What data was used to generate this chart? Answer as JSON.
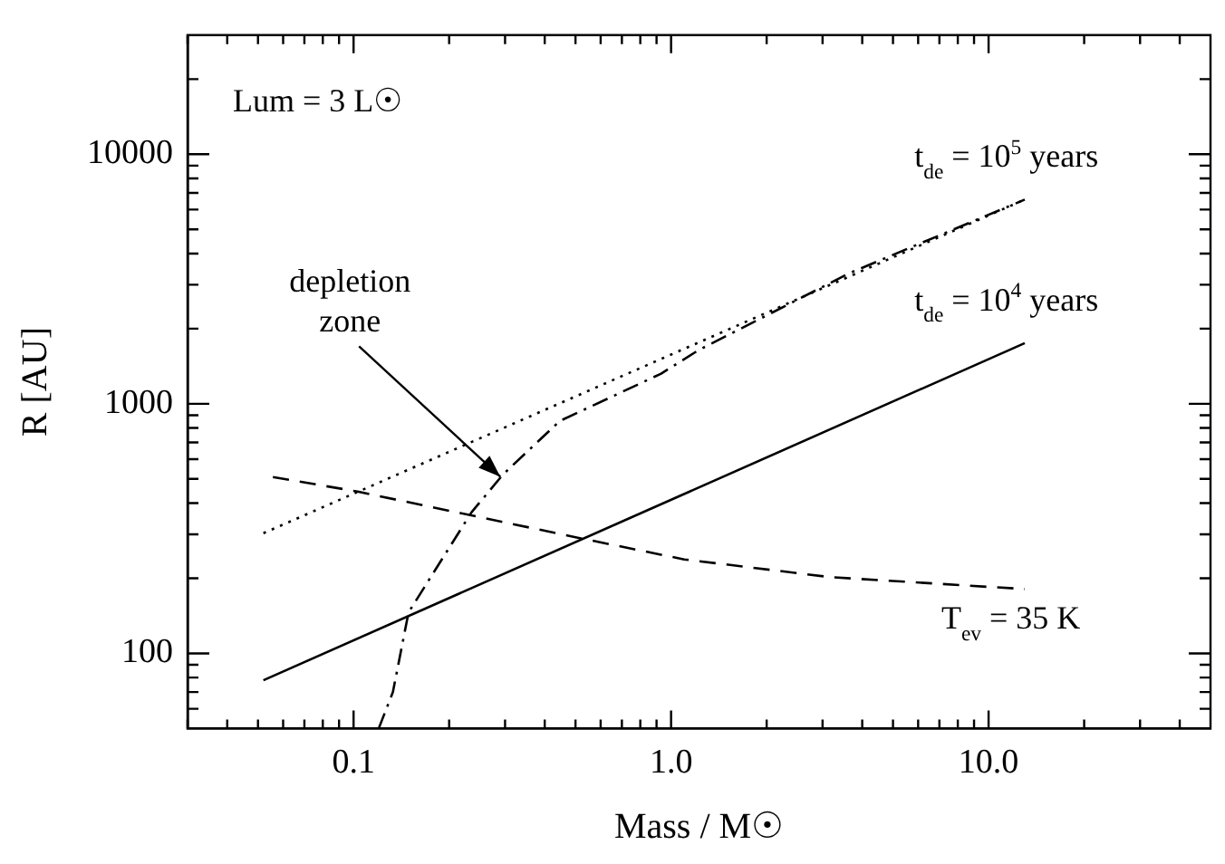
{
  "chart_data": {
    "type": "line",
    "xlabel": "Mass / M☉",
    "ylabel": "R [AU]",
    "log": "xy",
    "grid": false,
    "legend": false,
    "marker": "none",
    "xlim": [
      0.03,
      50
    ],
    "ylim": [
      50,
      30000
    ],
    "xticks": [
      {
        "value": 0.03,
        "label": null
      },
      {
        "value": 0.04,
        "label": null
      },
      {
        "value": 0.05,
        "label": null
      },
      {
        "value": 0.06,
        "label": null
      },
      {
        "value": 0.07,
        "label": null
      },
      {
        "value": 0.08,
        "label": null
      },
      {
        "value": 0.09,
        "label": null
      },
      {
        "value": 0.1,
        "label": "0.1"
      },
      {
        "value": 0.2,
        "label": null
      },
      {
        "value": 0.3,
        "label": null
      },
      {
        "value": 0.4,
        "label": null
      },
      {
        "value": 0.5,
        "label": null
      },
      {
        "value": 0.6,
        "label": null
      },
      {
        "value": 0.7,
        "label": null
      },
      {
        "value": 0.8,
        "label": null
      },
      {
        "value": 0.9,
        "label": null
      },
      {
        "value": 1,
        "label": "1.0"
      },
      {
        "value": 2,
        "label": null
      },
      {
        "value": 3,
        "label": null
      },
      {
        "value": 4,
        "label": null
      },
      {
        "value": 5,
        "label": null
      },
      {
        "value": 6,
        "label": null
      },
      {
        "value": 7,
        "label": null
      },
      {
        "value": 8,
        "label": null
      },
      {
        "value": 9,
        "label": null
      },
      {
        "value": 10,
        "label": "10.0"
      },
      {
        "value": 20,
        "label": null
      },
      {
        "value": 30,
        "label": null
      },
      {
        "value": 40,
        "label": null
      }
    ],
    "yticks": [
      {
        "value": 60,
        "label": null
      },
      {
        "value": 70,
        "label": null
      },
      {
        "value": 80,
        "label": null
      },
      {
        "value": 90,
        "label": null
      },
      100,
      {
        "value": 200,
        "label": null
      },
      {
        "value": 300,
        "label": null
      },
      {
        "value": 400,
        "label": null
      },
      {
        "value": 500,
        "label": null
      },
      {
        "value": 600,
        "label": null
      },
      {
        "value": 700,
        "label": null
      },
      {
        "value": 800,
        "label": null
      },
      {
        "value": 900,
        "label": null
      },
      1000,
      {
        "value": 2000,
        "label": null
      },
      {
        "value": 3000,
        "label": null
      },
      {
        "value": 4000,
        "label": null
      },
      {
        "value": 5000,
        "label": null
      },
      {
        "value": 6000,
        "label": null
      },
      {
        "value": 7000,
        "label": null
      },
      {
        "value": 8000,
        "label": null
      },
      {
        "value": 9000,
        "label": null
      },
      10000,
      {
        "value": 20000,
        "label": null
      }
    ],
    "series": [
      {
        "name": "t$_{de}$ = 10$^{5}$ years",
        "color": "#000000",
        "line_style": "dotted",
        "x": [
          0.052,
          13
        ],
        "values": [
          303,
          6580
        ]
      },
      {
        "name": "t$_{de}$ = 10$^{4}$ years",
        "color": "#000000",
        "line_style": "solid",
        "x": [
          0.052,
          13
        ],
        "values": [
          78,
          1750
        ]
      },
      {
        "name": "T$_{ev}$ = 35 K",
        "color": "#000000",
        "line_style": "dashed",
        "x": [
          0.0557,
          0.103,
          0.52,
          1.1,
          3.18,
          13
        ],
        "values": [
          509,
          445,
          289,
          238,
          202,
          181
        ]
      },
      {
        "color": "#000000",
        "line_style": "dashdot",
        "x": [
          0.12,
          0.133,
          0.149,
          0.235,
          0.296,
          0.446,
          0.93,
          1.22,
          3.65,
          13
        ],
        "values": [
          50,
          70,
          146,
          367,
          522,
          853,
          1320,
          1640,
          3340,
          6580
        ]
      }
    ],
    "annotations": [
      "Lum = 3 L☉",
      {
        "text": "depletion zone",
        "x": 0.29,
        "y": 510
      }
    ]
  }
}
